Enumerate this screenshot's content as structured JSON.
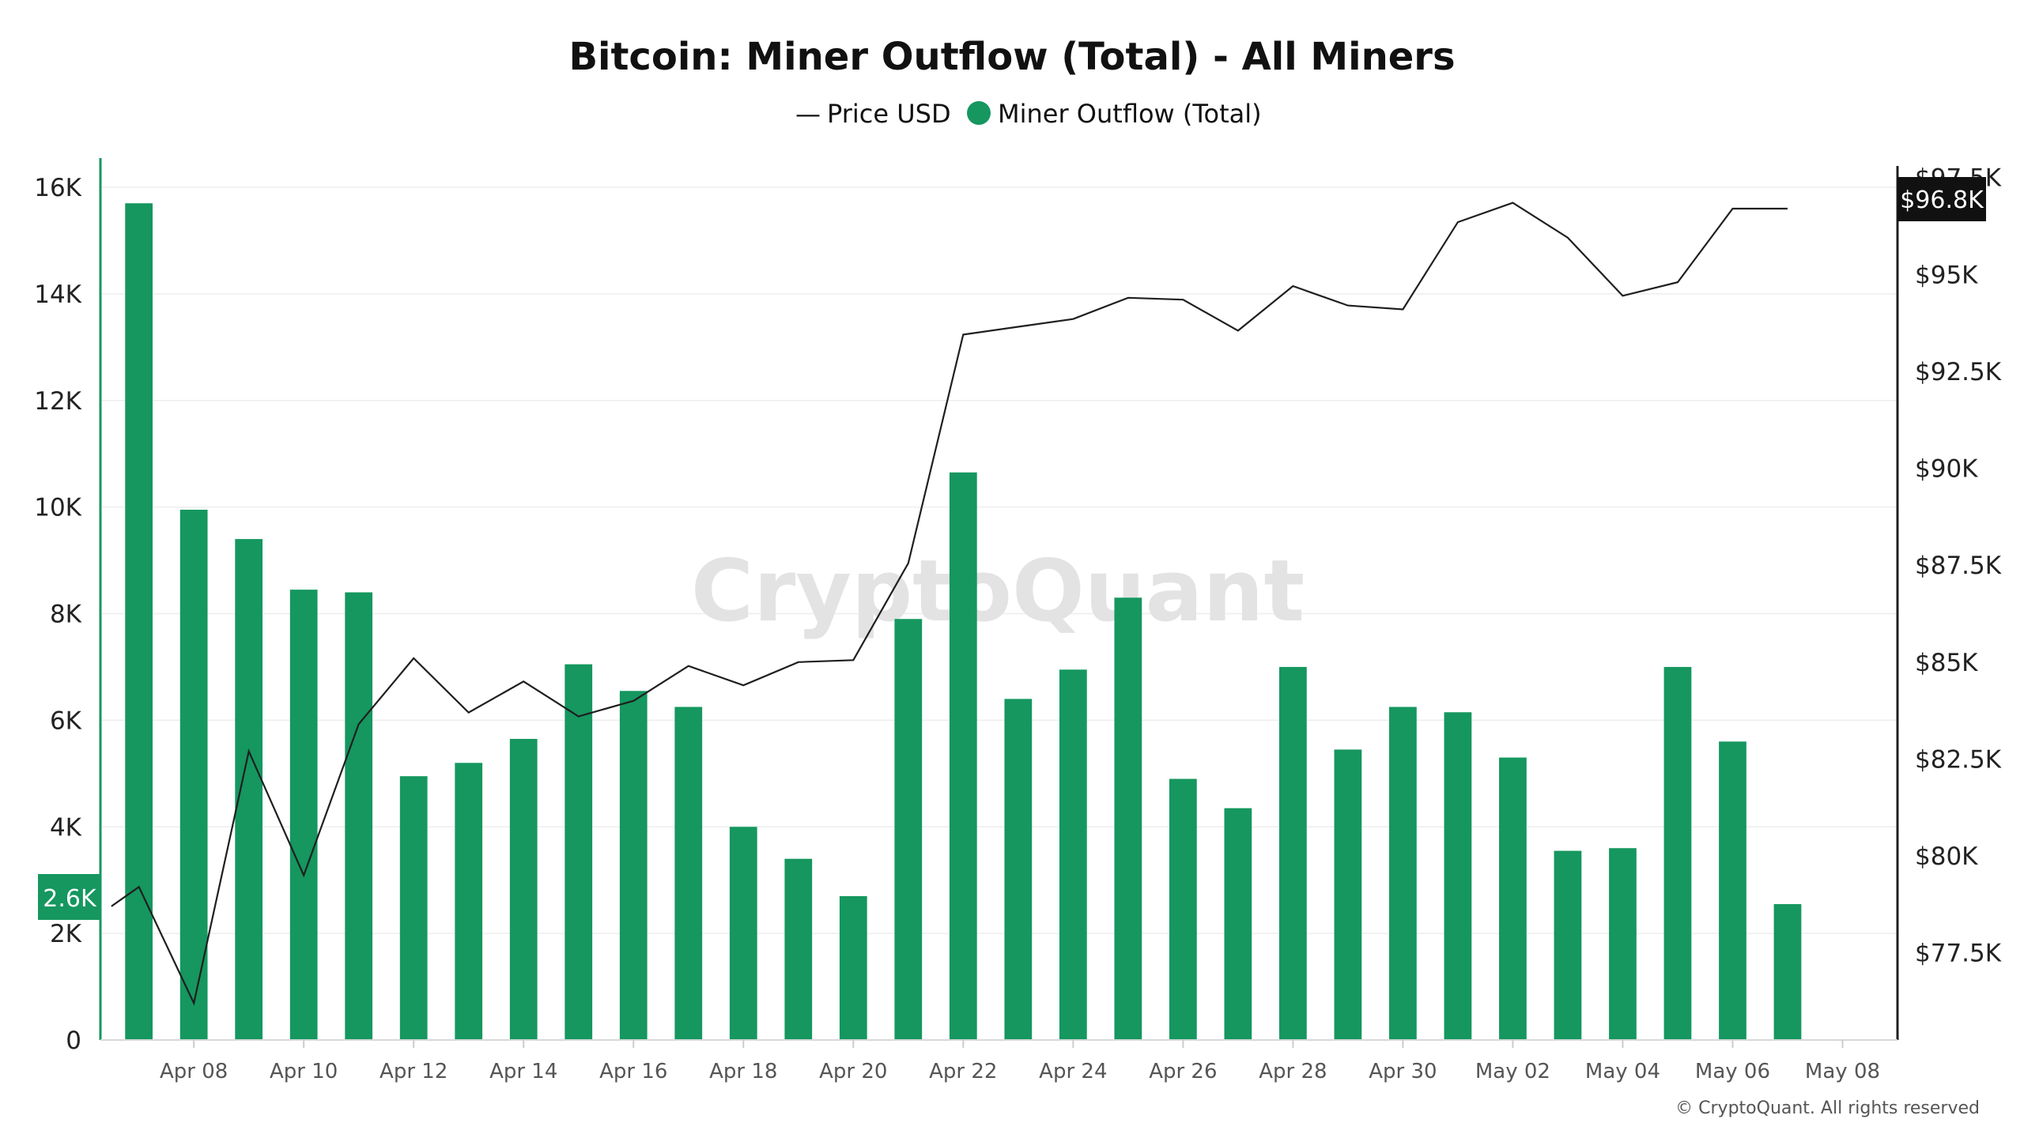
{
  "colors": {
    "bar": "#15975f",
    "price_line": "#1f1f1f",
    "grid": "#eeeeee",
    "left_axis": "#15975f",
    "right_axis": "#1f1f1f",
    "badge_left_bg": "#15975f",
    "badge_right_bg": "#111111",
    "watermark": "#e3e3e3"
  },
  "chart_data": {
    "type": "bar+line",
    "title": "Bitcoin: Miner Outflow (Total) - All Miners",
    "legend": {
      "placement": "top-center",
      "line_label": "Price USD",
      "bar_label": "Miner Outflow (Total)",
      "line_symbol": "—"
    },
    "x_tick_labels": [
      "Apr 08",
      "Apr 10",
      "Apr 12",
      "Apr 14",
      "Apr 16",
      "Apr 18",
      "Apr 20",
      "Apr 22",
      "Apr 24",
      "Apr 26",
      "Apr 28",
      "Apr 30",
      "May 02",
      "May 04",
      "May 06",
      "May 08"
    ],
    "x_tick_day_index": [
      1,
      3,
      5,
      7,
      9,
      11,
      13,
      15,
      17,
      19,
      21,
      23,
      25,
      27,
      29,
      31
    ],
    "x_range_day_index": [
      -0.7,
      32.0
    ],
    "left_axis": {
      "ticks": [
        "0",
        "2K",
        "4K",
        "6K",
        "8K",
        "10K",
        "12K",
        "14K",
        "16K"
      ],
      "tick_values": [
        0,
        2000,
        4000,
        6000,
        8000,
        10000,
        12000,
        14000,
        16000
      ],
      "ylim": [
        0,
        16000
      ]
    },
    "right_axis": {
      "ticks": [
        "$77.5K",
        "$80K",
        "$82.5K",
        "$85K",
        "$87.5K",
        "$90K",
        "$92.5K",
        "$95K",
        "$97.5K"
      ],
      "tick_values": [
        77500,
        80000,
        82500,
        85000,
        87500,
        90000,
        92500,
        95000,
        97500
      ],
      "ylim": [
        75250,
        97800
      ]
    },
    "series": [
      {
        "name": "Miner Outflow (Total)",
        "axis": "left",
        "day_index": [
          0,
          1,
          2,
          3,
          4,
          5,
          6,
          7,
          8,
          9,
          10,
          11,
          12,
          13,
          14,
          15,
          16,
          17,
          18,
          19,
          20,
          21,
          22,
          23,
          24,
          25,
          26,
          27,
          28,
          29,
          30
        ],
        "values": [
          15700,
          9950,
          9400,
          8450,
          8400,
          4950,
          5200,
          5650,
          7050,
          6550,
          6250,
          4000,
          3400,
          2700,
          7900,
          10650,
          6400,
          6950,
          8300,
          4900,
          4350,
          7000,
          5450,
          6250,
          6150,
          5300,
          3550,
          3600,
          7000,
          5600,
          2550
        ]
      },
      {
        "name": "Price USD",
        "axis": "right",
        "day_index": [
          -0.5,
          0,
          1,
          2,
          3,
          4,
          5,
          6,
          7,
          8,
          9,
          10,
          11,
          12,
          13,
          14,
          15,
          16,
          17,
          18,
          19,
          20,
          21,
          22,
          23,
          24,
          25,
          26,
          27,
          28,
          29,
          30
        ],
        "values": [
          78700,
          79200,
          76200,
          82700,
          79500,
          83400,
          85100,
          83700,
          84500,
          83600,
          84000,
          84900,
          84400,
          85000,
          85050,
          87550,
          93450,
          93650,
          93850,
          94400,
          94350,
          93550,
          94700,
          94200,
          94100,
          96350,
          96850,
          95950,
          94450,
          94800,
          96700,
          96700
        ]
      }
    ],
    "badges": {
      "left_current": "2.6K",
      "right_current": "$96.8K"
    },
    "watermark": "CryptoQuant",
    "footer": "© CryptoQuant. All rights reserved"
  }
}
